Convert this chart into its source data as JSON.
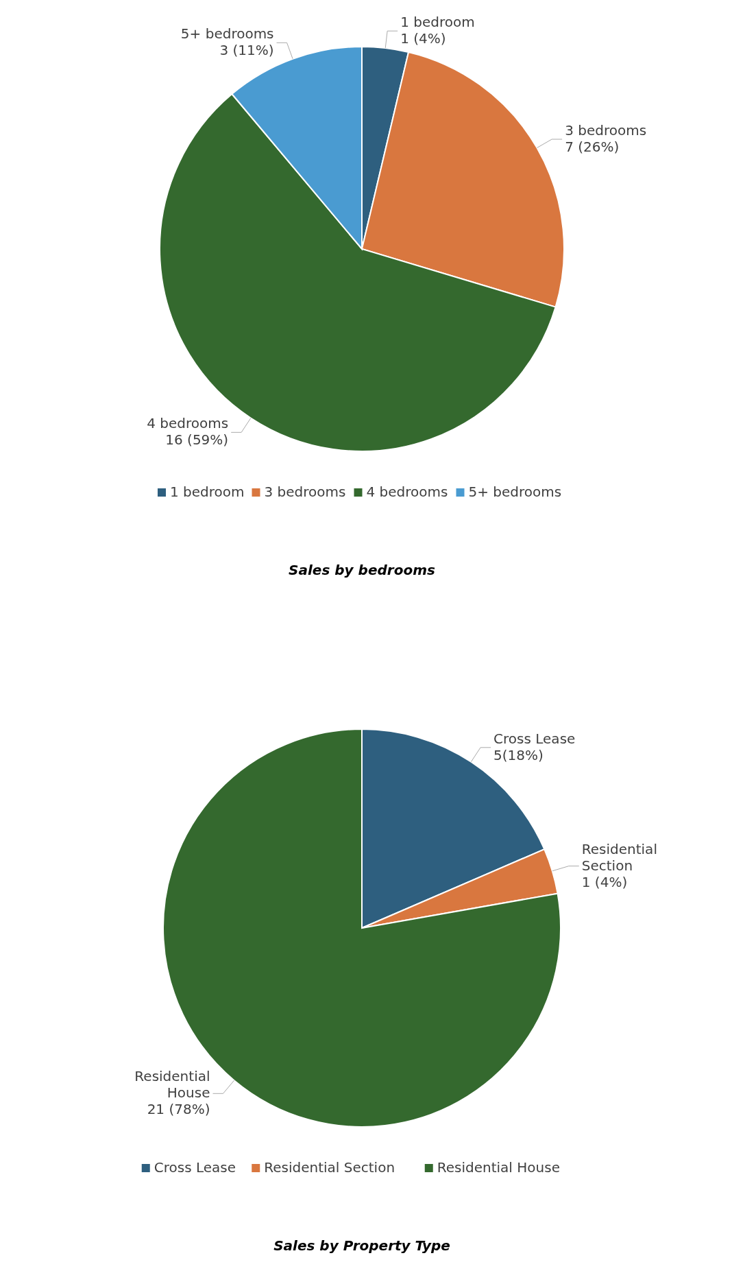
{
  "chart_data": [
    {
      "type": "pie",
      "title": "Sales by bedrooms",
      "categories": [
        "1 bedroom",
        "3 bedrooms",
        "4 bedrooms",
        "5+ bedrooms"
      ],
      "values": [
        1,
        7,
        16,
        3
      ],
      "colors": [
        "#2e5f7f",
        "#d9773f",
        "#34692e",
        "#4a9bd1"
      ],
      "value_labels": [
        "1 (4%)",
        "7 (26%)",
        "16 (59%)",
        "3 (11%)"
      ],
      "legend": "bottom"
    },
    {
      "type": "pie",
      "title": "Sales by Property Type",
      "categories": [
        "Cross Lease",
        "Residential Section",
        "Residential House"
      ],
      "values": [
        5,
        1,
        21
      ],
      "colors": [
        "#2e5f7f",
        "#d9773f",
        "#34692e"
      ],
      "value_labels": [
        "5(18%)",
        "1 (4%)",
        "21 (78%)"
      ],
      "legend": "bottom"
    }
  ]
}
